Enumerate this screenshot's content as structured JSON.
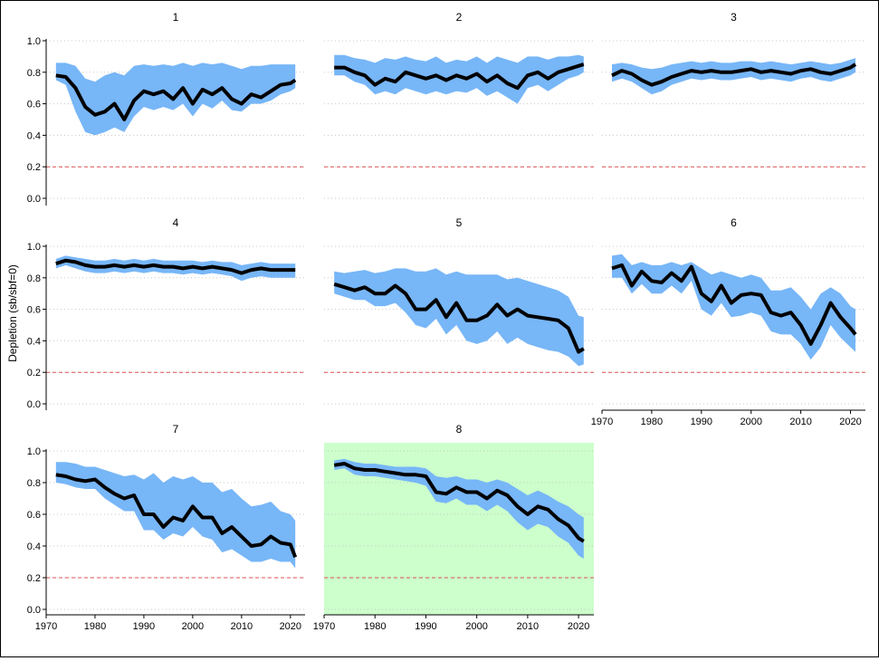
{
  "y_axis_title": "Depletion (sb/sbf=0)",
  "chart_data": {
    "type": "area",
    "xlim": [
      1972,
      2021
    ],
    "ylim": [
      0,
      1
    ],
    "x_ticks": [
      1970,
      1980,
      1990,
      2000,
      2010,
      2020
    ],
    "y_ticks": [
      0.0,
      0.2,
      0.4,
      0.6,
      0.8,
      1.0
    ],
    "y_tick_labels": [
      "0.0",
      "0.2",
      "0.4",
      "0.6",
      "0.8",
      "1.0"
    ],
    "reference_line": 0.2,
    "grid": "horizontal dotted",
    "colors": {
      "band": "#77b6f7",
      "line": "#000000",
      "reference": "#e05050",
      "highlight": "#ccffcc"
    },
    "panels": [
      {
        "title": "1",
        "x": [
          1972,
          1974,
          1976,
          1978,
          1980,
          1982,
          1984,
          1986,
          1988,
          1990,
          1992,
          1994,
          1996,
          1998,
          2000,
          2002,
          2004,
          2006,
          2008,
          2010,
          2012,
          2014,
          2016,
          2018,
          2020,
          2021
        ],
        "y": [
          0.78,
          0.77,
          0.7,
          0.58,
          0.53,
          0.55,
          0.6,
          0.5,
          0.62,
          0.68,
          0.66,
          0.68,
          0.63,
          0.7,
          0.6,
          0.69,
          0.66,
          0.7,
          0.63,
          0.6,
          0.66,
          0.64,
          0.68,
          0.72,
          0.73,
          0.75
        ],
        "lower": [
          0.75,
          0.72,
          0.55,
          0.42,
          0.4,
          0.42,
          0.45,
          0.42,
          0.52,
          0.58,
          0.56,
          0.58,
          0.56,
          0.6,
          0.52,
          0.6,
          0.57,
          0.62,
          0.56,
          0.55,
          0.6,
          0.6,
          0.62,
          0.66,
          0.68,
          0.7
        ],
        "upper": [
          0.86,
          0.86,
          0.84,
          0.76,
          0.74,
          0.78,
          0.8,
          0.78,
          0.84,
          0.85,
          0.84,
          0.85,
          0.84,
          0.86,
          0.84,
          0.86,
          0.85,
          0.86,
          0.84,
          0.82,
          0.84,
          0.84,
          0.85,
          0.85,
          0.85,
          0.85
        ]
      },
      {
        "title": "2",
        "x": [
          1972,
          1974,
          1976,
          1978,
          1980,
          1982,
          1984,
          1986,
          1988,
          1990,
          1992,
          1994,
          1996,
          1998,
          2000,
          2002,
          2004,
          2006,
          2008,
          2010,
          2012,
          2014,
          2016,
          2018,
          2020,
          2021
        ],
        "y": [
          0.83,
          0.83,
          0.8,
          0.78,
          0.72,
          0.76,
          0.74,
          0.8,
          0.78,
          0.76,
          0.78,
          0.75,
          0.78,
          0.76,
          0.79,
          0.74,
          0.78,
          0.73,
          0.7,
          0.78,
          0.8,
          0.76,
          0.8,
          0.82,
          0.84,
          0.85
        ],
        "lower": [
          0.78,
          0.78,
          0.74,
          0.72,
          0.66,
          0.68,
          0.66,
          0.7,
          0.68,
          0.66,
          0.68,
          0.66,
          0.68,
          0.67,
          0.7,
          0.65,
          0.68,
          0.64,
          0.6,
          0.7,
          0.72,
          0.68,
          0.72,
          0.76,
          0.78,
          0.8
        ],
        "upper": [
          0.91,
          0.91,
          0.89,
          0.88,
          0.86,
          0.89,
          0.88,
          0.9,
          0.88,
          0.87,
          0.9,
          0.86,
          0.88,
          0.87,
          0.9,
          0.86,
          0.9,
          0.88,
          0.86,
          0.9,
          0.9,
          0.88,
          0.9,
          0.9,
          0.91,
          0.9
        ]
      },
      {
        "title": "3",
        "x": [
          1972,
          1974,
          1976,
          1978,
          1980,
          1982,
          1984,
          1986,
          1988,
          1990,
          1992,
          1994,
          1996,
          1998,
          2000,
          2002,
          2004,
          2006,
          2008,
          2010,
          2012,
          2014,
          2016,
          2018,
          2020,
          2021
        ],
        "y": [
          0.78,
          0.81,
          0.79,
          0.75,
          0.72,
          0.74,
          0.77,
          0.79,
          0.81,
          0.8,
          0.81,
          0.8,
          0.8,
          0.81,
          0.82,
          0.8,
          0.81,
          0.8,
          0.79,
          0.81,
          0.82,
          0.8,
          0.79,
          0.81,
          0.83,
          0.85
        ],
        "lower": [
          0.74,
          0.76,
          0.74,
          0.7,
          0.66,
          0.68,
          0.72,
          0.74,
          0.76,
          0.75,
          0.76,
          0.75,
          0.75,
          0.76,
          0.77,
          0.75,
          0.76,
          0.75,
          0.74,
          0.76,
          0.77,
          0.75,
          0.74,
          0.76,
          0.78,
          0.8
        ],
        "upper": [
          0.85,
          0.86,
          0.85,
          0.83,
          0.82,
          0.83,
          0.85,
          0.86,
          0.87,
          0.86,
          0.87,
          0.86,
          0.86,
          0.87,
          0.87,
          0.86,
          0.87,
          0.86,
          0.85,
          0.86,
          0.87,
          0.86,
          0.85,
          0.86,
          0.88,
          0.89
        ]
      },
      {
        "title": "4",
        "x": [
          1972,
          1974,
          1976,
          1978,
          1980,
          1982,
          1984,
          1986,
          1988,
          1990,
          1992,
          1994,
          1996,
          1998,
          2000,
          2002,
          2004,
          2006,
          2008,
          2010,
          2012,
          2014,
          2016,
          2018,
          2020,
          2021
        ],
        "y": [
          0.89,
          0.91,
          0.9,
          0.88,
          0.87,
          0.87,
          0.88,
          0.87,
          0.88,
          0.87,
          0.88,
          0.87,
          0.87,
          0.86,
          0.87,
          0.86,
          0.87,
          0.86,
          0.85,
          0.83,
          0.85,
          0.86,
          0.85,
          0.85,
          0.85,
          0.85
        ],
        "lower": [
          0.86,
          0.88,
          0.86,
          0.84,
          0.83,
          0.83,
          0.84,
          0.83,
          0.84,
          0.83,
          0.84,
          0.83,
          0.83,
          0.82,
          0.83,
          0.82,
          0.83,
          0.82,
          0.81,
          0.78,
          0.8,
          0.81,
          0.8,
          0.8,
          0.8,
          0.8
        ],
        "upper": [
          0.92,
          0.94,
          0.93,
          0.92,
          0.91,
          0.91,
          0.92,
          0.91,
          0.92,
          0.91,
          0.92,
          0.91,
          0.91,
          0.91,
          0.91,
          0.9,
          0.91,
          0.9,
          0.9,
          0.88,
          0.89,
          0.9,
          0.89,
          0.89,
          0.89,
          0.89
        ]
      },
      {
        "title": "5",
        "x": [
          1972,
          1974,
          1976,
          1978,
          1980,
          1982,
          1984,
          1986,
          1988,
          1990,
          1992,
          1994,
          1996,
          1998,
          2000,
          2002,
          2004,
          2006,
          2008,
          2010,
          2012,
          2014,
          2016,
          2018,
          2020,
          2021
        ],
        "y": [
          0.76,
          0.74,
          0.72,
          0.74,
          0.7,
          0.7,
          0.75,
          0.7,
          0.6,
          0.6,
          0.66,
          0.55,
          0.64,
          0.53,
          0.53,
          0.56,
          0.63,
          0.56,
          0.6,
          0.56,
          0.55,
          0.54,
          0.53,
          0.48,
          0.33,
          0.35
        ],
        "lower": [
          0.7,
          0.68,
          0.66,
          0.66,
          0.62,
          0.62,
          0.64,
          0.58,
          0.5,
          0.48,
          0.54,
          0.44,
          0.5,
          0.4,
          0.38,
          0.4,
          0.46,
          0.38,
          0.42,
          0.38,
          0.36,
          0.34,
          0.33,
          0.3,
          0.24,
          0.25
        ],
        "upper": [
          0.84,
          0.83,
          0.84,
          0.85,
          0.83,
          0.84,
          0.86,
          0.86,
          0.84,
          0.84,
          0.86,
          0.82,
          0.84,
          0.82,
          0.82,
          0.82,
          0.82,
          0.79,
          0.8,
          0.78,
          0.76,
          0.74,
          0.72,
          0.68,
          0.56,
          0.55
        ]
      },
      {
        "title": "6",
        "x": [
          1972,
          1974,
          1976,
          1978,
          1980,
          1982,
          1984,
          1986,
          1988,
          1990,
          1992,
          1994,
          1996,
          1998,
          2000,
          2002,
          2004,
          2006,
          2008,
          2010,
          2012,
          2014,
          2016,
          2018,
          2020,
          2021
        ],
        "y": [
          0.86,
          0.88,
          0.75,
          0.84,
          0.78,
          0.77,
          0.83,
          0.78,
          0.87,
          0.7,
          0.65,
          0.75,
          0.64,
          0.69,
          0.7,
          0.69,
          0.58,
          0.56,
          0.58,
          0.5,
          0.38,
          0.5,
          0.64,
          0.55,
          0.48,
          0.44
        ],
        "lower": [
          0.8,
          0.8,
          0.7,
          0.76,
          0.7,
          0.7,
          0.75,
          0.7,
          0.78,
          0.6,
          0.56,
          0.64,
          0.55,
          0.56,
          0.58,
          0.56,
          0.46,
          0.44,
          0.44,
          0.38,
          0.28,
          0.36,
          0.5,
          0.42,
          0.36,
          0.33
        ],
        "upper": [
          0.94,
          0.95,
          0.88,
          0.9,
          0.88,
          0.88,
          0.9,
          0.88,
          0.9,
          0.86,
          0.82,
          0.84,
          0.82,
          0.8,
          0.82,
          0.8,
          0.72,
          0.72,
          0.74,
          0.68,
          0.6,
          0.7,
          0.74,
          0.7,
          0.62,
          0.6
        ]
      },
      {
        "title": "7",
        "x": [
          1972,
          1974,
          1976,
          1978,
          1980,
          1982,
          1984,
          1986,
          1988,
          1990,
          1992,
          1994,
          1996,
          1998,
          2000,
          2002,
          2004,
          2006,
          2008,
          2010,
          2012,
          2014,
          2016,
          2018,
          2020,
          2021
        ],
        "y": [
          0.85,
          0.84,
          0.82,
          0.81,
          0.82,
          0.77,
          0.73,
          0.7,
          0.72,
          0.6,
          0.6,
          0.52,
          0.58,
          0.56,
          0.65,
          0.58,
          0.58,
          0.48,
          0.52,
          0.46,
          0.4,
          0.41,
          0.46,
          0.42,
          0.41,
          0.33
        ],
        "lower": [
          0.8,
          0.79,
          0.77,
          0.76,
          0.76,
          0.7,
          0.66,
          0.62,
          0.62,
          0.5,
          0.5,
          0.44,
          0.48,
          0.46,
          0.52,
          0.46,
          0.44,
          0.36,
          0.38,
          0.34,
          0.3,
          0.3,
          0.32,
          0.3,
          0.3,
          0.26
        ],
        "upper": [
          0.93,
          0.93,
          0.92,
          0.9,
          0.9,
          0.88,
          0.86,
          0.84,
          0.85,
          0.82,
          0.86,
          0.8,
          0.84,
          0.82,
          0.84,
          0.8,
          0.8,
          0.74,
          0.76,
          0.7,
          0.65,
          0.66,
          0.68,
          0.62,
          0.6,
          0.56
        ]
      },
      {
        "title": "8",
        "highlight": true,
        "x": [
          1972,
          1974,
          1976,
          1978,
          1980,
          1982,
          1984,
          1986,
          1988,
          1990,
          1992,
          1994,
          1996,
          1998,
          2000,
          2002,
          2004,
          2006,
          2008,
          2010,
          2012,
          2014,
          2016,
          2018,
          2020,
          2021
        ],
        "y": [
          0.91,
          0.92,
          0.89,
          0.88,
          0.88,
          0.87,
          0.86,
          0.85,
          0.85,
          0.84,
          0.74,
          0.73,
          0.77,
          0.74,
          0.74,
          0.7,
          0.75,
          0.72,
          0.65,
          0.6,
          0.65,
          0.63,
          0.57,
          0.53,
          0.45,
          0.43
        ],
        "lower": [
          0.88,
          0.89,
          0.85,
          0.84,
          0.84,
          0.83,
          0.82,
          0.81,
          0.8,
          0.78,
          0.68,
          0.67,
          0.7,
          0.66,
          0.66,
          0.62,
          0.66,
          0.62,
          0.55,
          0.5,
          0.54,
          0.52,
          0.46,
          0.42,
          0.34,
          0.32
        ],
        "upper": [
          0.94,
          0.95,
          0.93,
          0.92,
          0.92,
          0.91,
          0.9,
          0.9,
          0.9,
          0.89,
          0.84,
          0.83,
          0.84,
          0.82,
          0.82,
          0.8,
          0.82,
          0.8,
          0.76,
          0.72,
          0.75,
          0.72,
          0.68,
          0.65,
          0.6,
          0.58
        ]
      }
    ]
  }
}
